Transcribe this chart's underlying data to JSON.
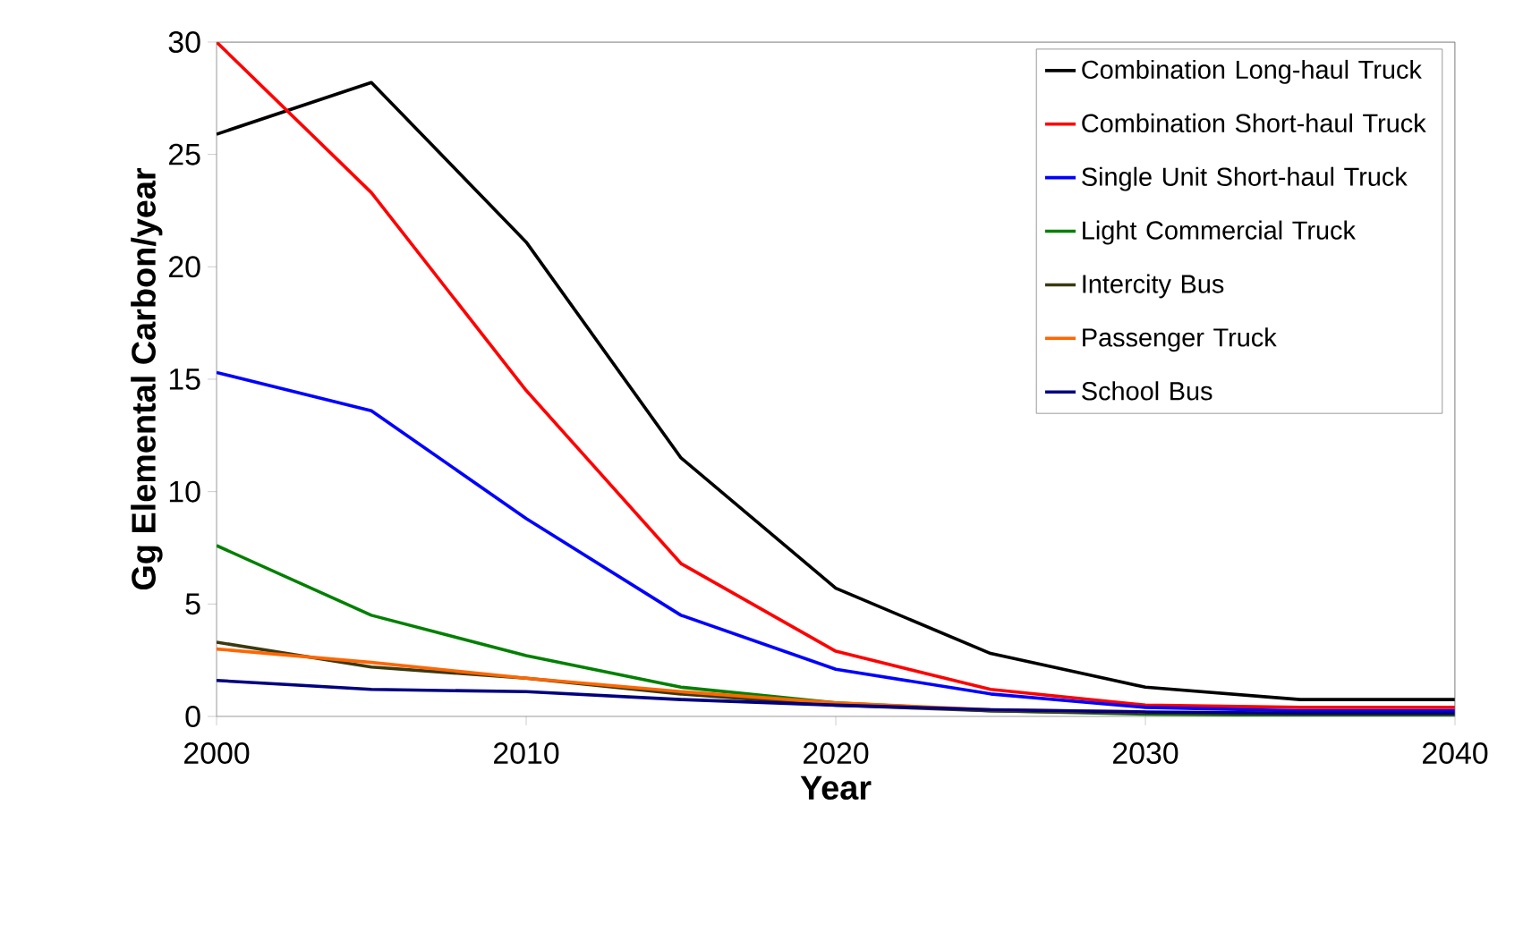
{
  "chart_data": {
    "type": "line",
    "xlabel": "Year",
    "ylabel": "Gg Elemental Carbon/year",
    "x": [
      2000,
      2005,
      2010,
      2015,
      2020,
      2025,
      2030,
      2035,
      2040
    ],
    "xlim": [
      2000,
      2040
    ],
    "xticks": [
      2000,
      2010,
      2020,
      2030,
      2040
    ],
    "ylim": [
      0,
      30
    ],
    "yticks": [
      0,
      5,
      10,
      15,
      20,
      25,
      30
    ],
    "legend": "top right",
    "grid": false,
    "marker": "none",
    "line_style": "solid",
    "series": [
      {
        "name": "Combination Long-haul Truck",
        "color": "#000000",
        "values": [
          25.9,
          28.2,
          21.1,
          11.5,
          5.7,
          2.8,
          1.3,
          0.75,
          0.75
        ]
      },
      {
        "name": "Combination Short-haul Truck",
        "color": "#ff0000",
        "values": [
          30,
          23.3,
          14.5,
          6.8,
          2.9,
          1.2,
          0.5,
          0.4,
          0.4
        ]
      },
      {
        "name": "Single Unit Short-haul Truck",
        "color": "#0000ff",
        "values": [
          15.3,
          13.6,
          8.8,
          4.5,
          2.1,
          1.0,
          0.4,
          0.25,
          0.25
        ]
      },
      {
        "name": "Light Commercial Truck",
        "color": "#008000",
        "values": [
          7.6,
          4.5,
          2.7,
          1.3,
          0.6,
          0.25,
          0.1,
          0.05,
          0.05
        ]
      },
      {
        "name": "Intercity Bus",
        "color": "#3a3a10",
        "values": [
          3.3,
          2.2,
          1.7,
          1.0,
          0.5,
          0.25,
          0.15,
          0.1,
          0.1
        ]
      },
      {
        "name": "Passenger Truck",
        "color": "#ff6600",
        "values": [
          3.0,
          2.4,
          1.7,
          1.1,
          0.6,
          0.3,
          0.2,
          null,
          null
        ]
      },
      {
        "name": "School Bus",
        "color": "#000080",
        "values": [
          1.6,
          1.2,
          1.1,
          0.75,
          0.5,
          0.3,
          0.2,
          0.15,
          0.15
        ]
      }
    ]
  }
}
